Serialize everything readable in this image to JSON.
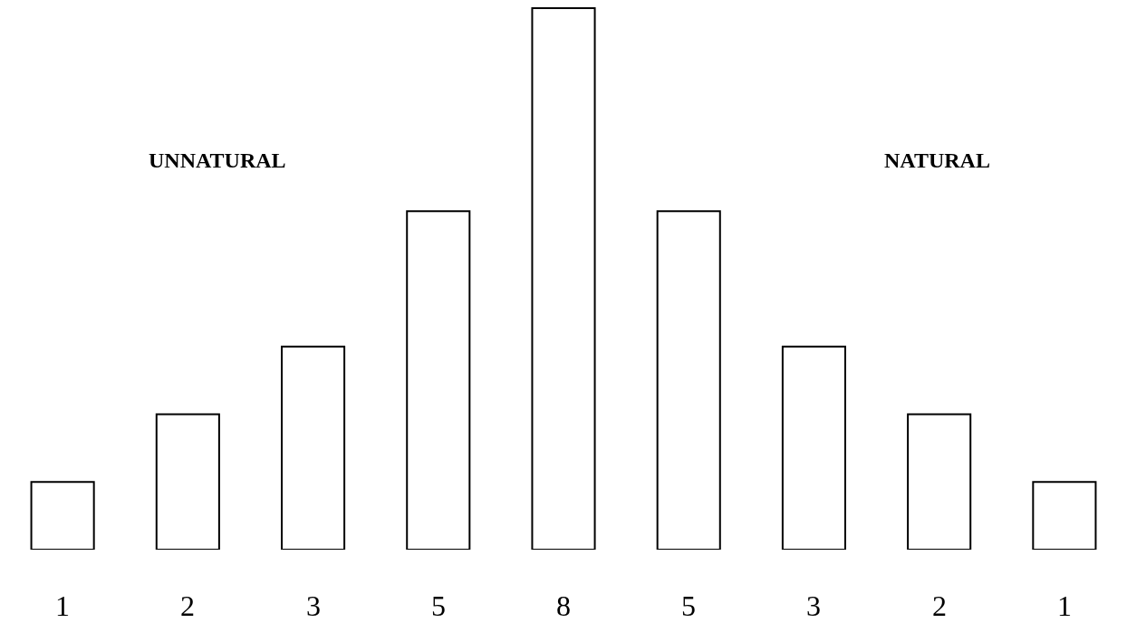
{
  "chart_data": {
    "type": "bar",
    "categories": [
      null,
      null,
      null,
      null,
      null,
      null,
      null,
      null,
      null
    ],
    "values": [
      1,
      2,
      3,
      5,
      8,
      5,
      3,
      2,
      1
    ],
    "color": "#ffffff",
    "data_labels": true,
    "annotations": [
      "UNNATURAL",
      "NATURAL"
    ]
  }
}
